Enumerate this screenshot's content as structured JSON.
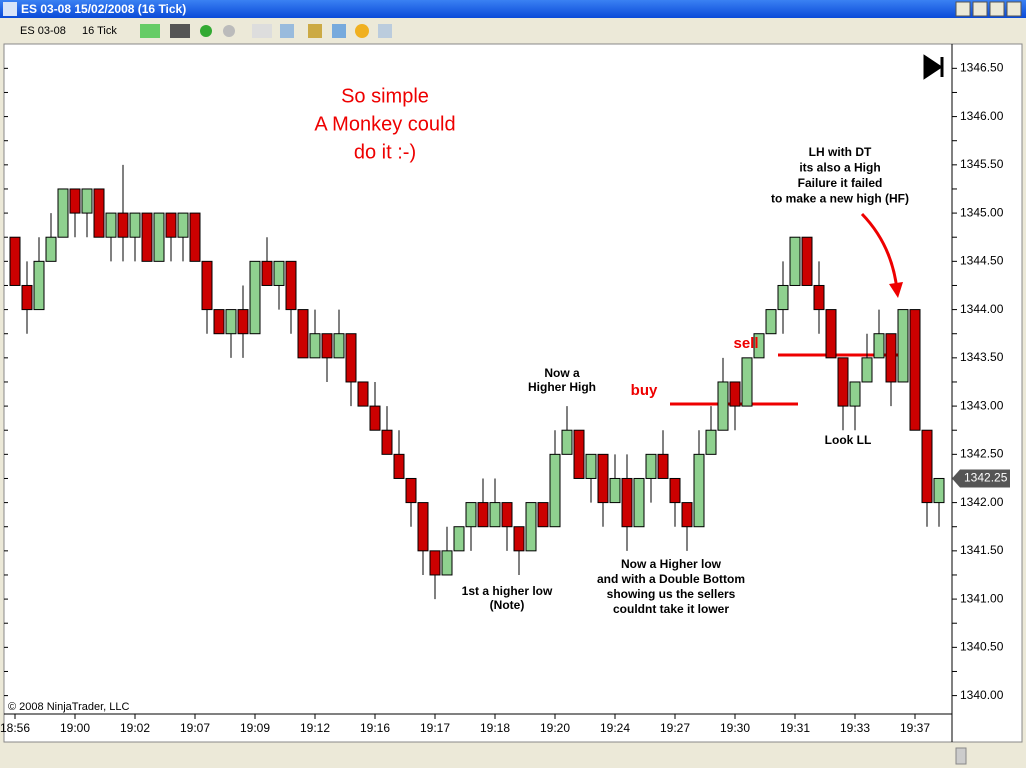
{
  "window": {
    "title": "ES 03-08  15/02/2008 (16 Tick)",
    "instrument": "ES 03-08",
    "interval": "16 Tick"
  },
  "chart_data": {
    "type": "candlestick",
    "copyright": "© 2008 NinjaTrader, LLC",
    "last_price": 1342.25,
    "categories": [
      "18:56",
      null,
      null,
      null,
      null,
      "19:00",
      null,
      null,
      null,
      null,
      "19:02",
      null,
      null,
      null,
      null,
      "19:07",
      null,
      null,
      null,
      null,
      "19:09",
      null,
      null,
      null,
      null,
      "19:12",
      null,
      null,
      null,
      null,
      "19:16",
      null,
      null,
      null,
      null,
      "19:17",
      null,
      null,
      null,
      null,
      "19:18",
      null,
      null,
      null,
      null,
      "19:20",
      null,
      null,
      null,
      null,
      "19:24",
      null,
      null,
      null,
      null,
      "19:27",
      null,
      null,
      null,
      null,
      "19:30",
      null,
      null,
      null,
      null,
      "19:31",
      null,
      null,
      null,
      null,
      "19:33",
      null,
      null,
      null,
      null,
      "19:37",
      null,
      null
    ],
    "open": [
      1344.75,
      1344.25,
      1344.0,
      1344.5,
      1344.75,
      1345.25,
      1345.0,
      1345.25,
      1344.75,
      1345.0,
      1344.75,
      1345.0,
      1344.5,
      1345.0,
      1344.75,
      1345.0,
      1344.5,
      1344.0,
      1343.75,
      1344.0,
      1343.75,
      1344.5,
      1344.25,
      1344.5,
      1344.0,
      1343.5,
      1343.75,
      1343.5,
      1343.75,
      1343.25,
      1343.0,
      1342.75,
      1342.5,
      1342.25,
      1342.0,
      1341.5,
      1341.25,
      1341.5,
      1341.75,
      1342.0,
      1341.75,
      1342.0,
      1341.75,
      1341.5,
      1342.0,
      1341.75,
      1342.5,
      1342.75,
      1342.25,
      1342.5,
      1342.0,
      1342.25,
      1341.75,
      1342.25,
      1342.5,
      1342.25,
      1342.0,
      1341.75,
      1342.5,
      1342.75,
      1343.25,
      1343.0,
      1343.5,
      1343.75,
      1344.0,
      1344.25,
      1344.75,
      1344.25,
      1344.0,
      1343.5,
      1343.0,
      1343.25,
      1343.5,
      1343.75,
      1343.25,
      1344.0,
      1342.75,
      1342.0
    ],
    "high": [
      1344.75,
      1344.5,
      1344.75,
      1345.0,
      1345.25,
      1345.25,
      1345.25,
      1345.25,
      1345.0,
      1345.5,
      1345.0,
      1345.0,
      1345.0,
      1345.0,
      1345.0,
      1345.0,
      1344.5,
      1344.0,
      1344.0,
      1344.25,
      1344.5,
      1344.75,
      1344.5,
      1344.5,
      1344.0,
      1344.0,
      1343.75,
      1344.0,
      1343.75,
      1343.25,
      1343.25,
      1343.0,
      1342.75,
      1342.25,
      1342.0,
      1341.5,
      1341.75,
      1341.75,
      1342.0,
      1342.25,
      1342.25,
      1342.0,
      1341.75,
      1342.0,
      1342.0,
      1342.75,
      1343.0,
      1342.75,
      1342.5,
      1342.5,
      1342.5,
      1342.5,
      1342.25,
      1342.5,
      1342.75,
      1342.25,
      1342.0,
      1342.75,
      1343.0,
      1343.5,
      1343.25,
      1343.5,
      1343.75,
      1344.0,
      1344.5,
      1344.75,
      1344.75,
      1344.5,
      1344.0,
      1343.5,
      1343.25,
      1343.75,
      1344.0,
      1343.75,
      1344.0,
      1344.0,
      1342.75,
      1342.25
    ],
    "low": [
      1344.25,
      1343.75,
      1344.0,
      1344.5,
      1344.75,
      1344.75,
      1344.75,
      1344.75,
      1344.5,
      1344.5,
      1344.5,
      1344.5,
      1344.5,
      1344.5,
      1344.5,
      1344.5,
      1343.75,
      1343.75,
      1343.5,
      1343.5,
      1343.75,
      1344.25,
      1344.0,
      1343.75,
      1343.5,
      1343.5,
      1343.25,
      1343.5,
      1343.0,
      1343.0,
      1342.75,
      1342.5,
      1342.25,
      1341.75,
      1341.25,
      1341.0,
      1341.25,
      1341.5,
      1341.5,
      1341.75,
      1341.75,
      1341.5,
      1341.25,
      1341.5,
      1341.75,
      1341.75,
      1342.5,
      1342.25,
      1342.0,
      1341.75,
      1342.0,
      1341.5,
      1341.75,
      1342.0,
      1342.25,
      1341.75,
      1341.5,
      1341.75,
      1342.5,
      1342.75,
      1342.75,
      1343.0,
      1343.5,
      1343.75,
      1343.75,
      1344.25,
      1344.25,
      1343.75,
      1343.5,
      1342.75,
      1342.75,
      1343.25,
      1343.5,
      1343.0,
      1343.25,
      1342.75,
      1341.75,
      1341.75
    ],
    "close": [
      1344.25,
      1344.0,
      1344.5,
      1344.75,
      1345.25,
      1345.0,
      1345.25,
      1344.75,
      1345.0,
      1344.75,
      1345.0,
      1344.5,
      1345.0,
      1344.75,
      1345.0,
      1344.5,
      1344.0,
      1343.75,
      1344.0,
      1343.75,
      1344.5,
      1344.25,
      1344.5,
      1344.0,
      1343.5,
      1343.75,
      1343.5,
      1343.75,
      1343.25,
      1343.0,
      1342.75,
      1342.5,
      1342.25,
      1342.0,
      1341.5,
      1341.25,
      1341.5,
      1341.75,
      1342.0,
      1341.75,
      1342.0,
      1341.75,
      1341.5,
      1342.0,
      1341.75,
      1342.5,
      1342.75,
      1342.25,
      1342.5,
      1342.0,
      1342.25,
      1341.75,
      1342.25,
      1342.5,
      1342.25,
      1342.0,
      1341.75,
      1342.5,
      1342.75,
      1343.25,
      1343.0,
      1343.5,
      1343.75,
      1344.0,
      1344.25,
      1344.75,
      1344.25,
      1344.0,
      1343.5,
      1343.0,
      1343.25,
      1343.5,
      1343.75,
      1343.25,
      1344.0,
      1342.75,
      1342.0,
      1342.25
    ],
    "up_color": "#8fd18f",
    "down_color": "#cc0000",
    "ylim": [
      1339.83,
      1346.69
    ],
    "yticks": [
      {
        "value": 1340.0,
        "label": "1340.00"
      },
      1340.25,
      {
        "value": 1340.5,
        "label": "1340.50"
      },
      1340.75,
      {
        "value": 1341.0,
        "label": "1341.00"
      },
      1341.25,
      {
        "value": 1341.5,
        "label": "1341.50"
      },
      1341.75,
      {
        "value": 1342.0,
        "label": "1342.00"
      },
      1342.25,
      {
        "value": 1342.5,
        "label": "1342.50"
      },
      1342.75,
      {
        "value": 1343.0,
        "label": "1343.00"
      },
      1343.25,
      {
        "value": 1343.5,
        "label": "1343.50"
      },
      1343.75,
      {
        "value": 1344.0,
        "label": "1344.00"
      },
      1344.25,
      {
        "value": 1344.5,
        "label": "1344.50"
      },
      1344.75,
      {
        "value": 1345.0,
        "label": "1345.00"
      },
      1345.25,
      {
        "value": 1345.5,
        "label": "1345.50"
      },
      1345.75,
      {
        "value": 1346.0,
        "label": "1346.00"
      },
      1346.25,
      {
        "value": 1346.5,
        "label": "1346.50"
      }
    ],
    "annotations": [
      [
        "So simple",
        "A Monkey could",
        "do it :-)"
      ],
      [
        "LH with DT",
        "its also a High",
        "Failure it failed",
        "to make a new high (HF)"
      ],
      [
        "Now a",
        "Higher High"
      ],
      [
        "buy"
      ],
      [
        "sell"
      ],
      [
        "Look LL"
      ],
      [
        "1st a higher low",
        "(Note)"
      ],
      [
        "Now a Higher low",
        "and with a Double Bottom",
        "showing us the sellers",
        "couldnt take it lower"
      ]
    ]
  }
}
